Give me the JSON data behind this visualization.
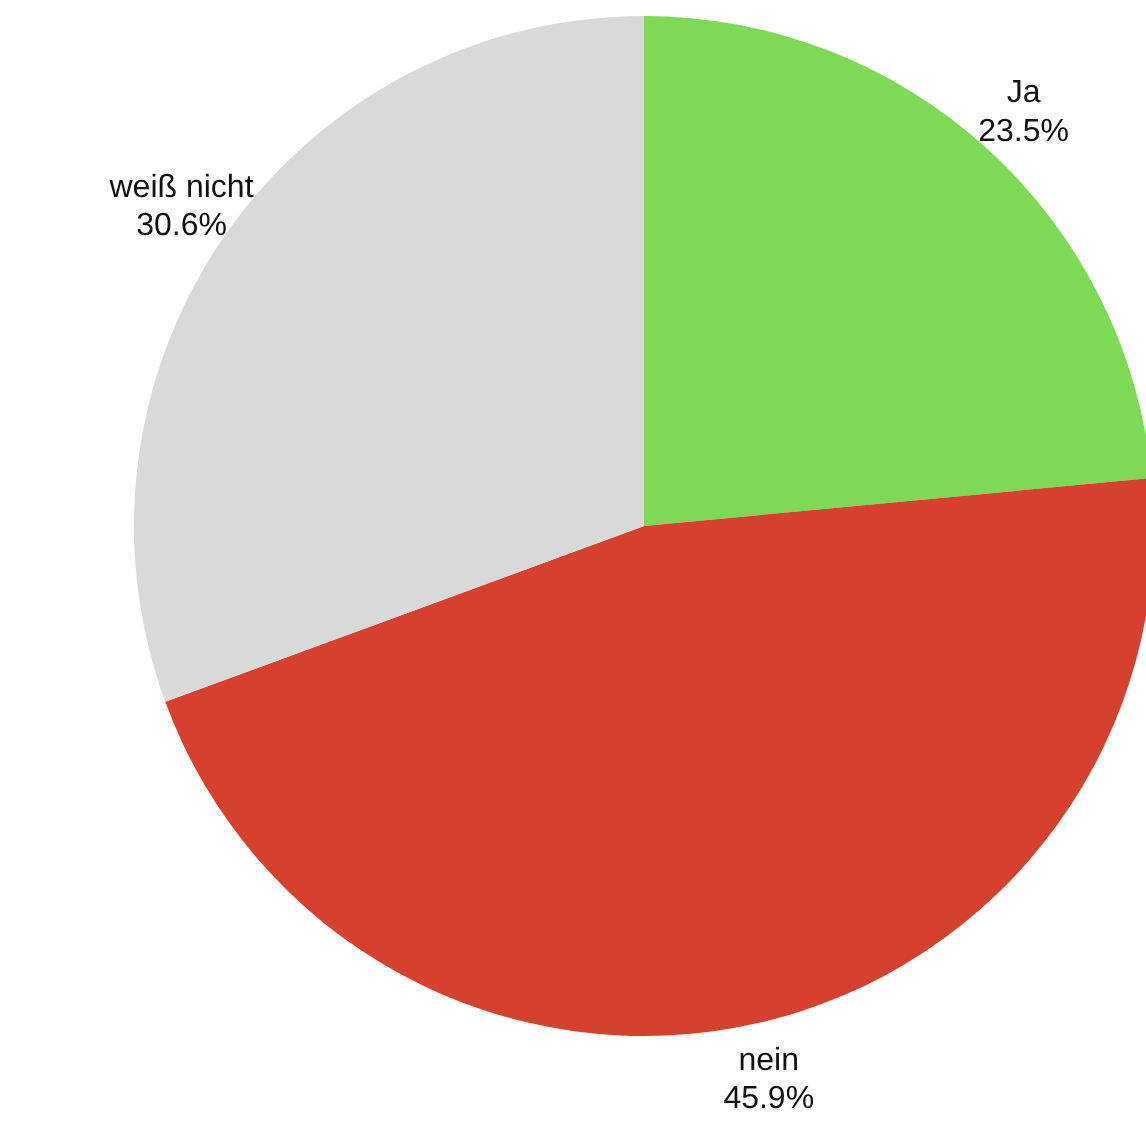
{
  "chart_data": {
    "type": "pie",
    "categories": [
      "Ja",
      "nein",
      "weiß nicht"
    ],
    "values": [
      23.5,
      45.9,
      30.6
    ],
    "value_labels": [
      "23.5%",
      "45.9%",
      "30.6%"
    ],
    "colors": [
      "#7ed957",
      "#d5412e",
      "#d9d9d9"
    ]
  }
}
